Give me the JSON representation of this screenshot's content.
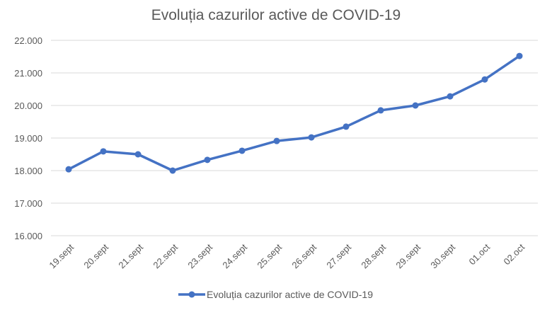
{
  "chart_data": {
    "type": "line",
    "title": "Evoluția cazurilor active de COVID-19",
    "xlabel": "",
    "ylabel": "",
    "categories": [
      "19.sept",
      "20.sept",
      "21.sept",
      "22.sept",
      "23.sept",
      "24.sept",
      "25.sept",
      "26.sept",
      "27.sept",
      "28.sept",
      "29.sept",
      "30.sept",
      "01.oct",
      "02.oct"
    ],
    "series": [
      {
        "name": "Evoluția cazurilor active de COVID-19",
        "color": "#4472C4",
        "values": [
          18040,
          18590,
          18500,
          18000,
          18330,
          18610,
          18910,
          19020,
          19350,
          19850,
          20000,
          20280,
          20800,
          21520
        ]
      }
    ],
    "ylim": [
      16000,
      22000
    ],
    "yticks": [
      16000,
      17000,
      18000,
      19000,
      20000,
      21000,
      22000
    ],
    "ytick_labels": [
      "16.000",
      "17.000",
      "18.000",
      "19.000",
      "20.000",
      "21.000",
      "22.000"
    ],
    "grid": true,
    "legend": "bottom"
  }
}
